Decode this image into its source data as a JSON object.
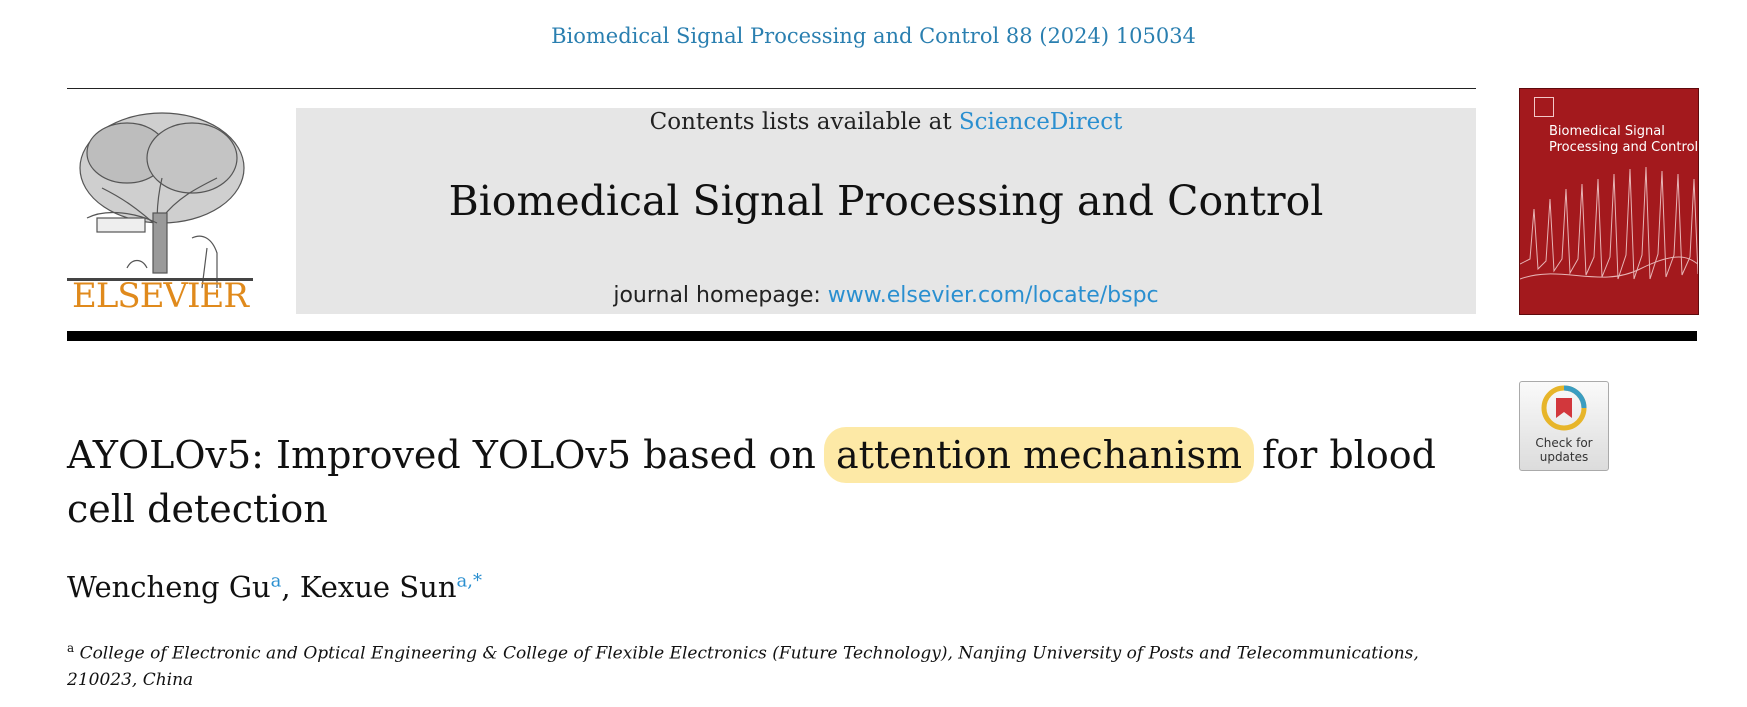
{
  "header": {
    "citation": "Biomedical Signal Processing and Control 88 (2024) 105034"
  },
  "masthead": {
    "publisher": "ELSEVIER",
    "contents_prefix": "Contents lists available at ",
    "contents_link": "ScienceDirect",
    "journal_name": "Biomedical Signal Processing and Control",
    "homepage_prefix": "journal homepage: ",
    "homepage_link": "www.elsevier.com/locate/bspc",
    "cover_title": "Biomedical Signal Processing and Control",
    "check_updates": "Check for updates"
  },
  "article": {
    "title_part1": "AYOLOv5: Improved YOLOv5 based on ",
    "title_highlight": "attention mechanism",
    "title_part2": " for blood cell detection",
    "authors": [
      {
        "name": "Wencheng Gu",
        "affil": "a"
      },
      {
        "name": "Kexue Sun",
        "affil": "a,*"
      }
    ],
    "author_separator": ", ",
    "affiliation_marker": "a",
    "affiliation": "College of Electronic and Optical Engineering & College of Flexible Electronics (Future Technology), Nanjing University of Posts and Telecommunications, 210023, China"
  },
  "colors": {
    "link": "#2a8fd0",
    "publisher_orange": "#e08a1c",
    "cover_red": "#a3191d",
    "highlight": "#fde9a6"
  }
}
